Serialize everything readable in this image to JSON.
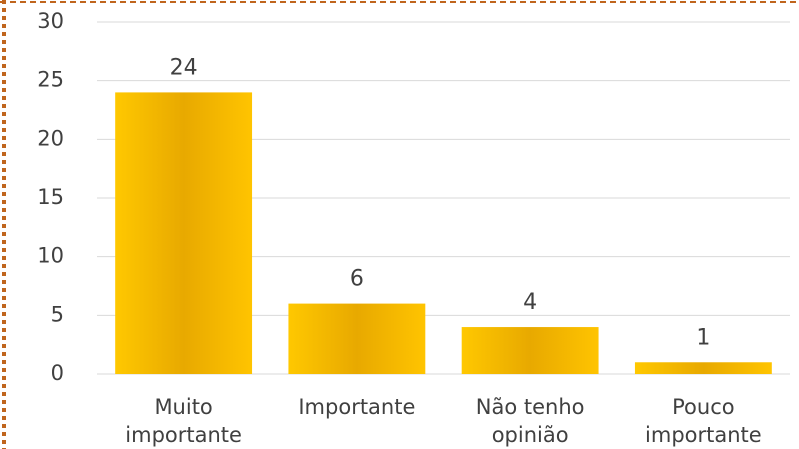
{
  "chart_data": {
    "type": "bar",
    "categories": [
      "Muito\nimportante",
      "Importante",
      "Não tenho\nopinião",
      "Pouco\nimportante"
    ],
    "values": [
      24,
      6,
      4,
      1
    ],
    "color": "#f5b800",
    "ylim": [
      0,
      30
    ],
    "yticks": [
      0,
      5,
      10,
      15,
      20,
      25,
      30
    ],
    "grid": true
  }
}
